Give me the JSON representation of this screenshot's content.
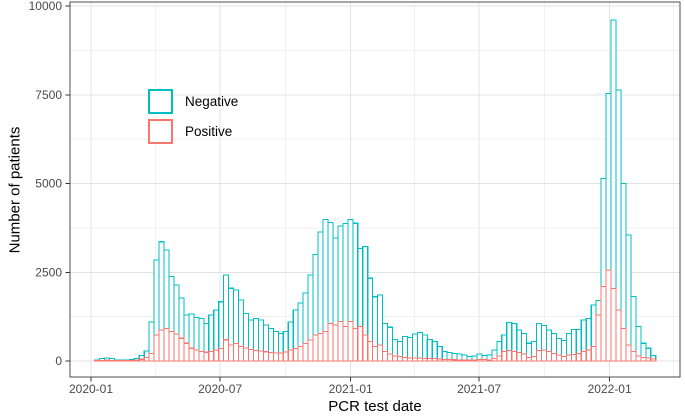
{
  "figure": {
    "background": "#ffffff",
    "panel_border_color": "#4d4d4d",
    "grid_major_color": "#e3e3e3",
    "grid_minor_color": "#f1f1f1",
    "tick_color": "#333333",
    "tick_label_color": "#4a4a4a",
    "bar_fill": "#ffffff"
  },
  "chart_data": {
    "type": "bar",
    "subtype": "overlaid-weekly-histogram",
    "title": "",
    "xlabel": "PCR test date",
    "ylabel": "Number of patients",
    "ylim": [
      0,
      10000
    ],
    "grid": true,
    "legend_position": "inside-top-left",
    "bin_width_days": 7,
    "y_major_ticks": [
      0,
      2500,
      5000,
      7500,
      10000
    ],
    "y_minor_ticks": [
      1250,
      3750,
      6250,
      8750
    ],
    "x_major_ticks": [
      {
        "date": "2020-01-01",
        "label": "2020-01"
      },
      {
        "date": "2020-07-01",
        "label": "2020-07"
      },
      {
        "date": "2021-01-01",
        "label": "2021-01"
      },
      {
        "date": "2021-07-01",
        "label": "2021-07"
      },
      {
        "date": "2022-01-01",
        "label": "2022-01"
      }
    ],
    "x_minor_tick_dates": [
      "2020-04-01",
      "2020-10-01",
      "2021-04-01",
      "2021-10-01",
      "2022-04-01"
    ],
    "x": [
      "2020-01-06",
      "2020-01-13",
      "2020-01-20",
      "2020-01-27",
      "2020-02-03",
      "2020-02-10",
      "2020-02-17",
      "2020-02-24",
      "2020-03-02",
      "2020-03-09",
      "2020-03-16",
      "2020-03-23",
      "2020-03-30",
      "2020-04-06",
      "2020-04-13",
      "2020-04-20",
      "2020-04-27",
      "2020-05-04",
      "2020-05-11",
      "2020-05-18",
      "2020-05-25",
      "2020-06-01",
      "2020-06-08",
      "2020-06-15",
      "2020-06-22",
      "2020-06-29",
      "2020-07-06",
      "2020-07-13",
      "2020-07-20",
      "2020-07-27",
      "2020-08-03",
      "2020-08-10",
      "2020-08-17",
      "2020-08-24",
      "2020-08-31",
      "2020-09-07",
      "2020-09-14",
      "2020-09-21",
      "2020-09-28",
      "2020-10-05",
      "2020-10-12",
      "2020-10-19",
      "2020-10-26",
      "2020-11-02",
      "2020-11-09",
      "2020-11-16",
      "2020-11-23",
      "2020-11-30",
      "2020-12-07",
      "2020-12-14",
      "2020-12-21",
      "2020-12-28",
      "2021-01-04",
      "2021-01-11",
      "2021-01-18",
      "2021-01-25",
      "2021-02-01",
      "2021-02-08",
      "2021-02-15",
      "2021-02-22",
      "2021-03-01",
      "2021-03-08",
      "2021-03-15",
      "2021-03-22",
      "2021-03-29",
      "2021-04-05",
      "2021-04-12",
      "2021-04-19",
      "2021-04-26",
      "2021-05-03",
      "2021-05-10",
      "2021-05-17",
      "2021-05-24",
      "2021-05-31",
      "2021-06-07",
      "2021-06-14",
      "2021-06-21",
      "2021-06-28",
      "2021-07-05",
      "2021-07-12",
      "2021-07-19",
      "2021-07-26",
      "2021-08-02",
      "2021-08-09",
      "2021-08-16",
      "2021-08-23",
      "2021-08-30",
      "2021-09-06",
      "2021-09-13",
      "2021-09-20",
      "2021-09-27",
      "2021-10-04",
      "2021-10-11",
      "2021-10-18",
      "2021-10-25",
      "2021-11-01",
      "2021-11-08",
      "2021-11-15",
      "2021-11-22",
      "2021-11-29",
      "2021-12-06",
      "2021-12-13",
      "2021-12-20",
      "2021-12-27",
      "2022-01-03",
      "2022-01-10",
      "2022-01-17",
      "2022-01-24",
      "2022-01-31",
      "2022-02-07",
      "2022-02-14",
      "2022-02-21",
      "2022-02-28"
    ],
    "series": [
      {
        "name": "Negative",
        "color": "#00BFC4",
        "values": [
          30,
          75,
          90,
          75,
          30,
          20,
          30,
          47,
          75,
          150,
          280,
          1100,
          2845,
          3360,
          3130,
          2380,
          2140,
          1770,
          1300,
          1324,
          1220,
          1200,
          1060,
          1300,
          1440,
          1670,
          2420,
          2050,
          2000,
          1720,
          1340,
          1160,
          1200,
          1160,
          1010,
          920,
          830,
          780,
          830,
          1100,
          1440,
          1630,
          1910,
          2420,
          3000,
          3630,
          3990,
          3900,
          3470,
          3800,
          3870,
          3990,
          3880,
          3170,
          3220,
          2330,
          1810,
          1860,
          1060,
          950,
          610,
          545,
          685,
          667,
          760,
          800,
          732,
          610,
          545,
          404,
          263,
          235,
          216,
          197,
          169,
          122,
          141,
          197,
          150,
          169,
          310,
          545,
          732,
          1080,
          1060,
          873,
          779,
          500,
          545,
          1061,
          1000,
          873,
          779,
          638,
          573,
          779,
          892,
          892,
          1155,
          1202,
          1577,
          1700,
          5146,
          7540,
          9606,
          7634,
          5005,
          3549,
          1812,
          967,
          500,
          360,
          150
        ]
      },
      {
        "name": "Positive",
        "color": "#F8766D",
        "values": [
          10,
          15,
          20,
          18,
          10,
          8,
          10,
          14,
          25,
          50,
          94,
          216,
          732,
          870,
          920,
          830,
          760,
          640,
          500,
          360,
          310,
          265,
          245,
          265,
          310,
          356,
          600,
          450,
          497,
          404,
          366,
          320,
          300,
          280,
          260,
          240,
          230,
          230,
          250,
          310,
          357,
          404,
          497,
          590,
          730,
          780,
          830,
          1060,
          1010,
          1110,
          970,
          1110,
          920,
          970,
          730,
          544,
          404,
          451,
          263,
          197,
          141,
          122,
          100,
          90,
          80,
          85,
          75,
          70,
          65,
          55,
          45,
          40,
          35,
          30,
          28,
          25,
          30,
          40,
          47,
          28,
          75,
          141,
          263,
          291,
          263,
          235,
          197,
          100,
          122,
          291,
          310,
          263,
          216,
          169,
          122,
          169,
          188,
          216,
          263,
          310,
          404,
          1296,
          2100,
          2563,
          2047,
          1437,
          920,
          451,
          263,
          141,
          103,
          80,
          60
        ]
      }
    ]
  }
}
